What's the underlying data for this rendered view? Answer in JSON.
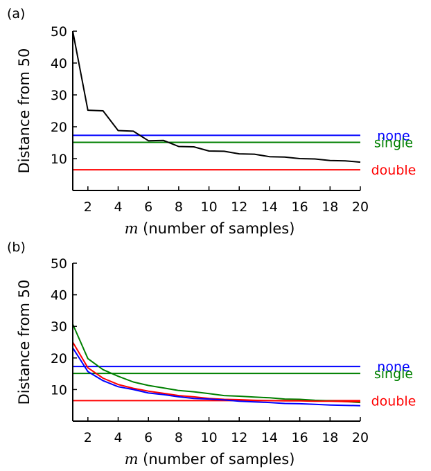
{
  "chart_data": [
    {
      "panel_label": "(a)",
      "type": "line",
      "xlabel_var": "m",
      "xlabel_text": " (number of samples)",
      "ylabel": "Distance from 50",
      "xlim": [
        1,
        20
      ],
      "ylim": [
        0,
        50
      ],
      "xticks": [
        2,
        4,
        6,
        8,
        10,
        12,
        14,
        16,
        18,
        20
      ],
      "yticks": [
        10,
        20,
        30,
        40,
        50
      ],
      "grid": false,
      "series": [
        {
          "color": "#000000",
          "x": [
            1,
            2,
            3,
            4,
            5,
            6,
            7,
            8,
            9,
            10,
            11,
            12,
            13,
            14,
            15,
            16,
            17,
            18,
            19,
            20
          ],
          "values": [
            50,
            25.2,
            25.0,
            18.8,
            18.6,
            15.6,
            15.7,
            13.8,
            13.7,
            12.4,
            12.3,
            11.5,
            11.4,
            10.6,
            10.5,
            10.0,
            9.9,
            9.4,
            9.3,
            8.9
          ]
        }
      ],
      "hlines": [
        {
          "label": "none",
          "value": 17.3,
          "color": "#0000ff"
        },
        {
          "label": "single",
          "value": 15.1,
          "color": "#008000"
        },
        {
          "label": "double",
          "value": 6.5,
          "color": "#ff0000"
        }
      ]
    },
    {
      "panel_label": "(b)",
      "type": "line",
      "xlabel_var": "m",
      "xlabel_text": " (number of samples)",
      "ylabel": "Distance from 50",
      "xlim": [
        1,
        20
      ],
      "ylim": [
        0,
        50
      ],
      "xticks": [
        2,
        4,
        6,
        8,
        10,
        12,
        14,
        16,
        18,
        20
      ],
      "yticks": [
        10,
        20,
        30,
        40,
        50
      ],
      "grid": false,
      "series": [
        {
          "color": "#008000",
          "x": [
            1,
            2,
            3,
            4,
            5,
            6,
            7,
            8,
            9,
            10,
            11,
            12,
            13,
            14,
            15,
            16,
            17,
            18,
            19,
            20
          ],
          "values": [
            30.7,
            19.8,
            16.3,
            14.2,
            12.4,
            11.3,
            10.5,
            9.7,
            9.3,
            8.7,
            8.1,
            7.9,
            7.6,
            7.4,
            7.0,
            6.9,
            6.6,
            6.4,
            6.2,
            5.9
          ]
        },
        {
          "color": "#ff0000",
          "x": [
            1,
            2,
            3,
            4,
            5,
            6,
            7,
            8,
            9,
            10,
            11,
            12,
            13,
            14,
            15,
            16,
            17,
            18,
            19,
            20
          ],
          "values": [
            25.0,
            16.9,
            13.6,
            11.6,
            10.4,
            9.5,
            8.8,
            8.1,
            7.7,
            7.2,
            6.9,
            6.8,
            6.6,
            6.5,
            6.4,
            6.4,
            6.3,
            6.3,
            6.2,
            6.2
          ]
        },
        {
          "color": "#0000ff",
          "x": [
            1,
            2,
            3,
            4,
            5,
            6,
            7,
            8,
            9,
            10,
            11,
            12,
            13,
            14,
            15,
            16,
            17,
            18,
            19,
            20
          ],
          "values": [
            23.2,
            15.7,
            12.8,
            10.9,
            10.0,
            8.9,
            8.4,
            7.7,
            7.2,
            7.0,
            6.7,
            6.3,
            6.1,
            5.9,
            5.6,
            5.5,
            5.3,
            5.1,
            5.0,
            4.9
          ]
        }
      ],
      "hlines": [
        {
          "label": "none",
          "value": 17.3,
          "color": "#0000ff"
        },
        {
          "label": "single",
          "value": 15.1,
          "color": "#008000"
        },
        {
          "label": "double",
          "value": 6.5,
          "color": "#ff0000"
        }
      ]
    }
  ]
}
